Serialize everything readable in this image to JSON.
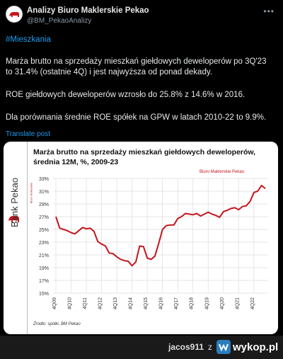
{
  "tweet": {
    "author_name": "Analizy Biuro Maklerskie Pekao",
    "author_handle": "@BM_PekaoAnalizy",
    "more_icon": "ellipsis-icon",
    "hashtag": "#Mieszkania",
    "para1": "Marża brutto na sprzedaży mieszkań giełdowych deweloperów po 3Q'23 to 31.4% (ostatnie 4Q) i jest najwyższa od ponad dekady.",
    "para2": "ROE giełdowych deweloperów wzrosło do 25.8% z 14.6% w 2016.",
    "para3": "Dla porównania średnie ROE spółek na GPW w latach 2010-22 to 9.9%.",
    "translate": "Translate post"
  },
  "card": {
    "bank_name": "Bank Pekao",
    "bank_sub": "Biuro Maklerskie",
    "brand_label": "Biuro Maklerskie Pekao",
    "source": "Źródło: spółki, BM Pekao"
  },
  "chart_data": {
    "type": "line",
    "title": "Marża brutto na sprzedaży mieszkań giełdowych deweloperów, średnia 12M, %, 2009-23",
    "ylim": [
      15,
      33
    ],
    "yticks": [
      "15%",
      "17%",
      "19%",
      "21%",
      "23%",
      "25%",
      "27%",
      "29%",
      "31%",
      "33%"
    ],
    "xticks": [
      "4Q09",
      "4Q10",
      "4Q11",
      "4Q12",
      "4Q13",
      "4Q14",
      "4Q15",
      "4Q16",
      "4Q17",
      "4Q18",
      "4Q19",
      "4Q20",
      "4Q21",
      "4Q22"
    ],
    "grid": true,
    "color": "#c4161c",
    "series": [
      {
        "values": [
          27.0,
          25.2,
          25.0,
          24.8,
          24.5,
          24.3,
          24.8,
          25.3,
          25.1,
          25.2,
          24.7,
          23.1,
          22.7,
          22.4,
          21.3,
          21.2,
          20.7,
          20.3,
          20.1,
          20.0,
          19.3,
          19.9,
          22.4,
          22.3,
          20.5,
          20.3,
          20.8,
          22.8,
          25.0,
          25.6,
          25.7,
          25.7,
          26.7,
          27.0,
          27.5,
          27.4,
          27.3,
          27.5,
          27.1,
          27.4,
          27.7,
          27.4,
          27.2,
          26.9,
          27.8,
          28.0,
          28.3,
          28.4,
          28.1,
          28.6,
          28.7,
          29.4,
          30.8,
          31.0,
          31.9,
          31.4
        ]
      }
    ]
  },
  "footer": {
    "user": "jacos911",
    "z": "z",
    "logo_text": "wykop.pl",
    "logo_icon": "wykop-logo-icon"
  }
}
